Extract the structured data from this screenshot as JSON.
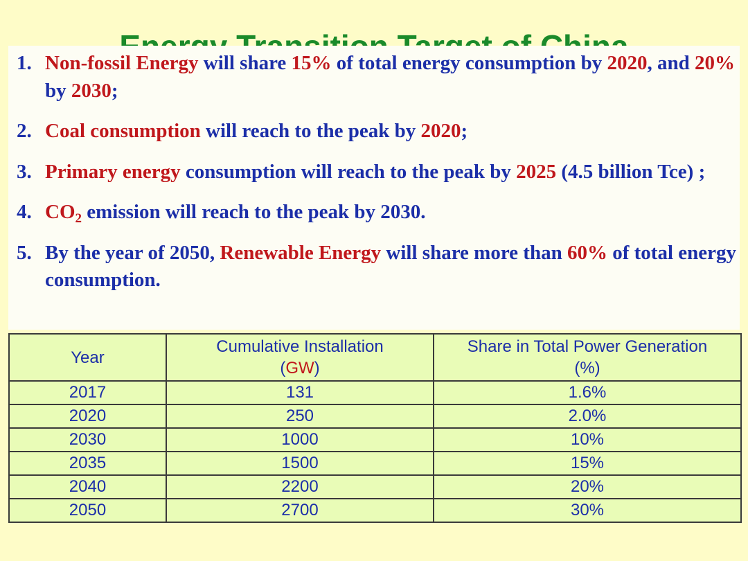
{
  "title": "Energy Transition Target of China",
  "targets": [
    {
      "number": "1.",
      "segments": [
        {
          "text": "Non-fossil Energy",
          "color": "red"
        },
        {
          "text": " will share ",
          "color": "blue"
        },
        {
          "text": "15%",
          "color": "red"
        },
        {
          "text": " of total energy consumption by ",
          "color": "blue"
        },
        {
          "text": "2020",
          "color": "red"
        },
        {
          "text": ", and ",
          "color": "blue"
        },
        {
          "text": "20%",
          "color": "red"
        },
        {
          "text": " by ",
          "color": "blue"
        },
        {
          "text": "2030",
          "color": "red"
        },
        {
          "text": ";",
          "color": "blue"
        }
      ]
    },
    {
      "number": "2.",
      "segments": [
        {
          "text": "Coal consumption",
          "color": "red"
        },
        {
          "text": " will reach to the peak by ",
          "color": "blue"
        },
        {
          "text": "2020",
          "color": "red"
        },
        {
          "text": ";",
          "color": "blue"
        }
      ]
    },
    {
      "number": "3.",
      "segments": [
        {
          "text": "Primary energy",
          "color": "red"
        },
        {
          "text": " consumption will reach to the peak by  ",
          "color": "blue"
        },
        {
          "text": "2025",
          "color": "red"
        },
        {
          "text": " (4.5 billion Tce) ;",
          "color": "blue"
        }
      ]
    },
    {
      "number": "4.",
      "segments": [
        {
          "text": "CO",
          "color": "red"
        },
        {
          "text": "2",
          "color": "red",
          "sub": true
        },
        {
          "text": " emission will reach to the peak by 2030.",
          "color": "blue"
        }
      ]
    },
    {
      "number": "5.",
      "segments": [
        {
          "text": "By the year of 2050, ",
          "color": "blue"
        },
        {
          "text": "Renewable Energy",
          "color": "red"
        },
        {
          "text": " will share more than ",
          "color": "blue"
        },
        {
          "text": "60%",
          "color": "red"
        },
        {
          "text": " of total energy consumption.",
          "color": "blue"
        }
      ]
    }
  ],
  "table": {
    "headers": {
      "year": "Year",
      "installation_line1": "Cumulative Installation",
      "installation_open": "(",
      "installation_unit": "GW",
      "installation_close": ")",
      "share_line1": "Share in Total Power Generation",
      "share_line2": "(%)"
    },
    "rows": [
      {
        "year": "2017",
        "installation": "131",
        "share": "1.6%"
      },
      {
        "year": "2020",
        "installation": "250",
        "share": "2.0%"
      },
      {
        "year": "2030",
        "installation": "1000",
        "share": "10%"
      },
      {
        "year": "2035",
        "installation": "1500",
        "share": "15%"
      },
      {
        "year": "2040",
        "installation": "2200",
        "share": "20%"
      },
      {
        "year": "2050",
        "installation": "2700",
        "share": "30%"
      }
    ]
  },
  "colors": {
    "title": "#1a8a2a",
    "red": "#c0181c",
    "blue": "#1c2fa8",
    "background": "#fefcc8",
    "table_fill": "#e9fcb7"
  }
}
